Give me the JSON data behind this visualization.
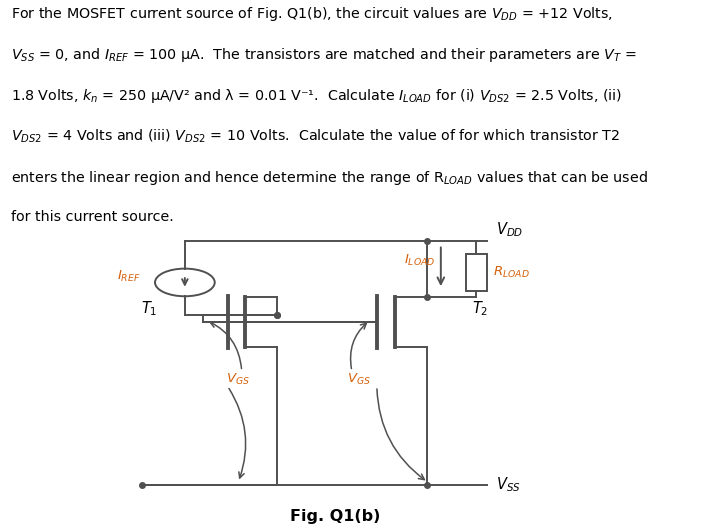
{
  "fig_label": "Fig. Q1(b)",
  "background": "#ffffff",
  "text_color": "#000000",
  "circuit_color": "#505050",
  "label_color": "#d4600a",
  "vdd_vss_color": "#000000"
}
